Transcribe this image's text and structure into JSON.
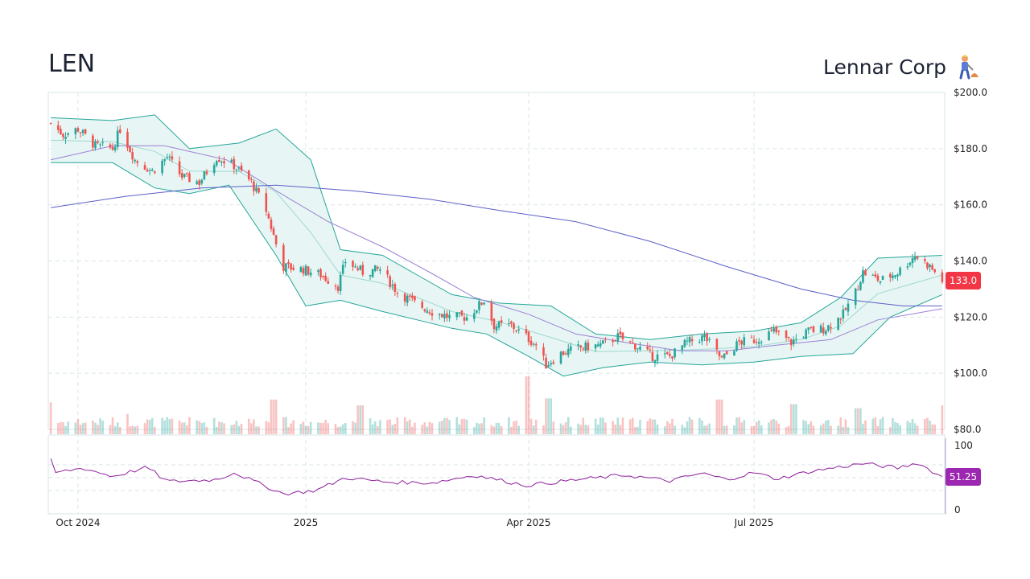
{
  "header": {
    "ticker": "LEN",
    "company": "Lennar Corp"
  },
  "colors": {
    "up": "#26a69a",
    "down": "#ef5350",
    "band_fill": "#e6f5f3",
    "band_line": "#26a69a",
    "ma_fast": "#9c7fd6",
    "ma_slow": "#5b5fc7",
    "rsi": "#8e1f9a",
    "price_tag": "#f23645",
    "rsi_tag": "#9c27b0",
    "grid": "#d9e6ea"
  },
  "chart_data": {
    "type": "candlestick",
    "price_axis": {
      "min": 80,
      "max": 200,
      "ticks": [
        80,
        100,
        120,
        140,
        160,
        180,
        200
      ],
      "tick_labels": [
        "$80.0",
        "$100.0",
        "$120.0",
        "$140.0",
        "$160.0",
        "$180.0",
        "$200.0"
      ]
    },
    "x_ticks": [
      "Oct 2024",
      "2025",
      "Apr 2025",
      "Jul 2025"
    ],
    "last_price": "133.0",
    "price_path": [
      [
        "2024-09-20",
        189
      ],
      [
        "2024-09-25",
        185
      ],
      [
        "2024-10-01",
        187
      ],
      [
        "2024-10-08",
        181
      ],
      [
        "2024-10-15",
        180
      ],
      [
        "2024-10-18",
        187
      ],
      [
        "2024-10-24",
        176
      ],
      [
        "2024-10-31",
        172
      ],
      [
        "2024-11-06",
        177
      ],
      [
        "2024-11-12",
        170
      ],
      [
        "2024-11-19",
        168
      ],
      [
        "2024-11-26",
        177
      ],
      [
        "2024-12-03",
        174
      ],
      [
        "2024-12-10",
        168
      ],
      [
        "2024-12-16",
        158
      ],
      [
        "2024-12-20",
        146
      ],
      [
        "2024-12-23",
        138
      ],
      [
        "2024-12-31",
        137
      ],
      [
        "2025-01-07",
        135
      ],
      [
        "2025-01-14",
        131
      ],
      [
        "2025-01-17",
        140
      ],
      [
        "2025-01-24",
        136
      ],
      [
        "2025-01-31",
        137
      ],
      [
        "2025-02-07",
        129
      ],
      [
        "2025-02-14",
        125
      ],
      [
        "2025-02-21",
        122
      ],
      [
        "2025-02-28",
        120
      ],
      [
        "2025-03-07",
        120
      ],
      [
        "2025-03-14",
        126
      ],
      [
        "2025-03-18",
        117
      ],
      [
        "2025-03-25",
        117
      ],
      [
        "2025-03-31",
        113
      ],
      [
        "2025-04-04",
        110
      ],
      [
        "2025-04-08",
        103
      ],
      [
        "2025-04-14",
        107
      ],
      [
        "2025-04-21",
        109
      ],
      [
        "2025-04-30",
        110
      ],
      [
        "2025-05-07",
        113
      ],
      [
        "2025-05-14",
        110
      ],
      [
        "2025-05-21",
        106
      ],
      [
        "2025-05-28",
        106
      ],
      [
        "2025-06-04",
        111
      ],
      [
        "2025-06-11",
        113
      ],
      [
        "2025-06-18",
        105
      ],
      [
        "2025-06-25",
        111
      ],
      [
        "2025-07-02",
        112
      ],
      [
        "2025-07-09",
        115
      ],
      [
        "2025-07-16",
        111
      ],
      [
        "2025-07-23",
        115
      ],
      [
        "2025-07-30",
        116
      ],
      [
        "2025-08-06",
        121
      ],
      [
        "2025-08-11",
        129
      ],
      [
        "2025-08-14",
        136
      ],
      [
        "2025-08-21",
        133
      ],
      [
        "2025-08-28",
        136
      ],
      [
        "2025-09-04",
        142
      ],
      [
        "2025-09-10",
        138
      ],
      [
        "2025-09-15",
        133
      ]
    ],
    "bollinger_upper_path": [
      [
        "2024-09-20",
        191
      ],
      [
        "2024-10-15",
        190
      ],
      [
        "2024-11-01",
        192
      ],
      [
        "2024-11-15",
        180
      ],
      [
        "2024-12-05",
        182
      ],
      [
        "2024-12-20",
        187
      ],
      [
        "2025-01-03",
        176
      ],
      [
        "2025-01-15",
        144
      ],
      [
        "2025-02-01",
        142
      ],
      [
        "2025-02-15",
        135
      ],
      [
        "2025-03-01",
        128
      ],
      [
        "2025-03-20",
        125
      ],
      [
        "2025-04-10",
        124
      ],
      [
        "2025-04-28",
        114
      ],
      [
        "2025-05-20",
        112
      ],
      [
        "2025-06-10",
        114
      ],
      [
        "2025-07-01",
        115
      ],
      [
        "2025-07-20",
        118
      ],
      [
        "2025-08-05",
        127
      ],
      [
        "2025-08-20",
        141
      ],
      [
        "2025-09-15",
        142
      ]
    ],
    "bollinger_lower_path": [
      [
        "2024-09-20",
        175
      ],
      [
        "2024-10-15",
        175
      ],
      [
        "2024-11-01",
        166
      ],
      [
        "2024-11-15",
        164
      ],
      [
        "2024-12-01",
        167
      ],
      [
        "2024-12-20",
        142
      ],
      [
        "2025-01-01",
        124
      ],
      [
        "2025-01-15",
        126
      ],
      [
        "2025-02-01",
        122
      ],
      [
        "2025-02-15",
        119
      ],
      [
        "2025-03-01",
        116
      ],
      [
        "2025-03-15",
        114
      ],
      [
        "2025-04-01",
        106
      ],
      [
        "2025-04-15",
        99
      ],
      [
        "2025-05-01",
        102
      ],
      [
        "2025-05-20",
        104
      ],
      [
        "2025-06-10",
        103
      ],
      [
        "2025-07-01",
        104
      ],
      [
        "2025-07-20",
        106
      ],
      [
        "2025-08-10",
        107
      ],
      [
        "2025-08-25",
        120
      ],
      [
        "2025-09-15",
        128
      ]
    ],
    "ma_fast_path": [
      [
        "2024-09-20",
        176
      ],
      [
        "2024-10-15",
        181
      ],
      [
        "2024-11-05",
        181
      ],
      [
        "2024-11-30",
        176
      ],
      [
        "2024-12-20",
        165
      ],
      [
        "2025-01-10",
        154
      ],
      [
        "2025-02-01",
        145
      ],
      [
        "2025-02-20",
        136
      ],
      [
        "2025-03-10",
        127
      ],
      [
        "2025-04-01",
        121
      ],
      [
        "2025-04-20",
        114
      ],
      [
        "2025-05-10",
        111
      ],
      [
        "2025-06-01",
        108
      ],
      [
        "2025-06-20",
        108
      ],
      [
        "2025-07-10",
        110
      ],
      [
        "2025-08-01",
        112
      ],
      [
        "2025-08-20",
        119
      ],
      [
        "2025-09-15",
        123
      ]
    ],
    "ma_slow_path": [
      [
        "2024-09-20",
        159
      ],
      [
        "2024-10-20",
        163
      ],
      [
        "2024-11-20",
        166
      ],
      [
        "2024-12-20",
        167
      ],
      [
        "2025-01-20",
        165
      ],
      [
        "2025-02-20",
        162
      ],
      [
        "2025-03-20",
        158
      ],
      [
        "2025-04-20",
        154
      ],
      [
        "2025-05-20",
        147
      ],
      [
        "2025-06-20",
        138
      ],
      [
        "2025-07-20",
        130
      ],
      [
        "2025-08-10",
        126
      ],
      [
        "2025-08-30",
        124
      ],
      [
        "2025-09-15",
        124
      ]
    ],
    "volume_spikes": [
      [
        "2024-09-20",
        0.55
      ],
      [
        "2024-10-20",
        0.35
      ],
      [
        "2024-12-19",
        0.6
      ],
      [
        "2025-01-23",
        0.5
      ],
      [
        "2025-03-31",
        1.0
      ],
      [
        "2025-04-09",
        0.62
      ],
      [
        "2025-06-17",
        0.6
      ],
      [
        "2025-07-17",
        0.52
      ],
      [
        "2025-08-12",
        0.45
      ],
      [
        "2025-09-15",
        0.5
      ]
    ],
    "rsi": {
      "axis_labels": [
        "100",
        "0"
      ],
      "last_value": "51.25",
      "path": [
        [
          "2024-09-20",
          77
        ],
        [
          "2024-09-22",
          58
        ],
        [
          "2024-10-03",
          65
        ],
        [
          "2024-10-15",
          52
        ],
        [
          "2024-10-29",
          66
        ],
        [
          "2024-11-06",
          44
        ],
        [
          "2024-11-26",
          47
        ],
        [
          "2024-12-03",
          58
        ],
        [
          "2024-12-15",
          38
        ],
        [
          "2024-12-23",
          25
        ],
        [
          "2025-01-05",
          30
        ],
        [
          "2025-01-17",
          50
        ],
        [
          "2025-02-03",
          43
        ],
        [
          "2025-02-21",
          42
        ],
        [
          "2025-03-10",
          54
        ],
        [
          "2025-03-31",
          38
        ],
        [
          "2025-04-21",
          47
        ],
        [
          "2025-05-10",
          54
        ],
        [
          "2025-05-28",
          45
        ],
        [
          "2025-06-10",
          57
        ],
        [
          "2025-06-20",
          47
        ],
        [
          "2025-07-01",
          58
        ],
        [
          "2025-07-10",
          48
        ],
        [
          "2025-07-24",
          60
        ],
        [
          "2025-08-14",
          72
        ],
        [
          "2025-08-28",
          65
        ],
        [
          "2025-09-05",
          73
        ],
        [
          "2025-09-15",
          51
        ]
      ]
    }
  }
}
